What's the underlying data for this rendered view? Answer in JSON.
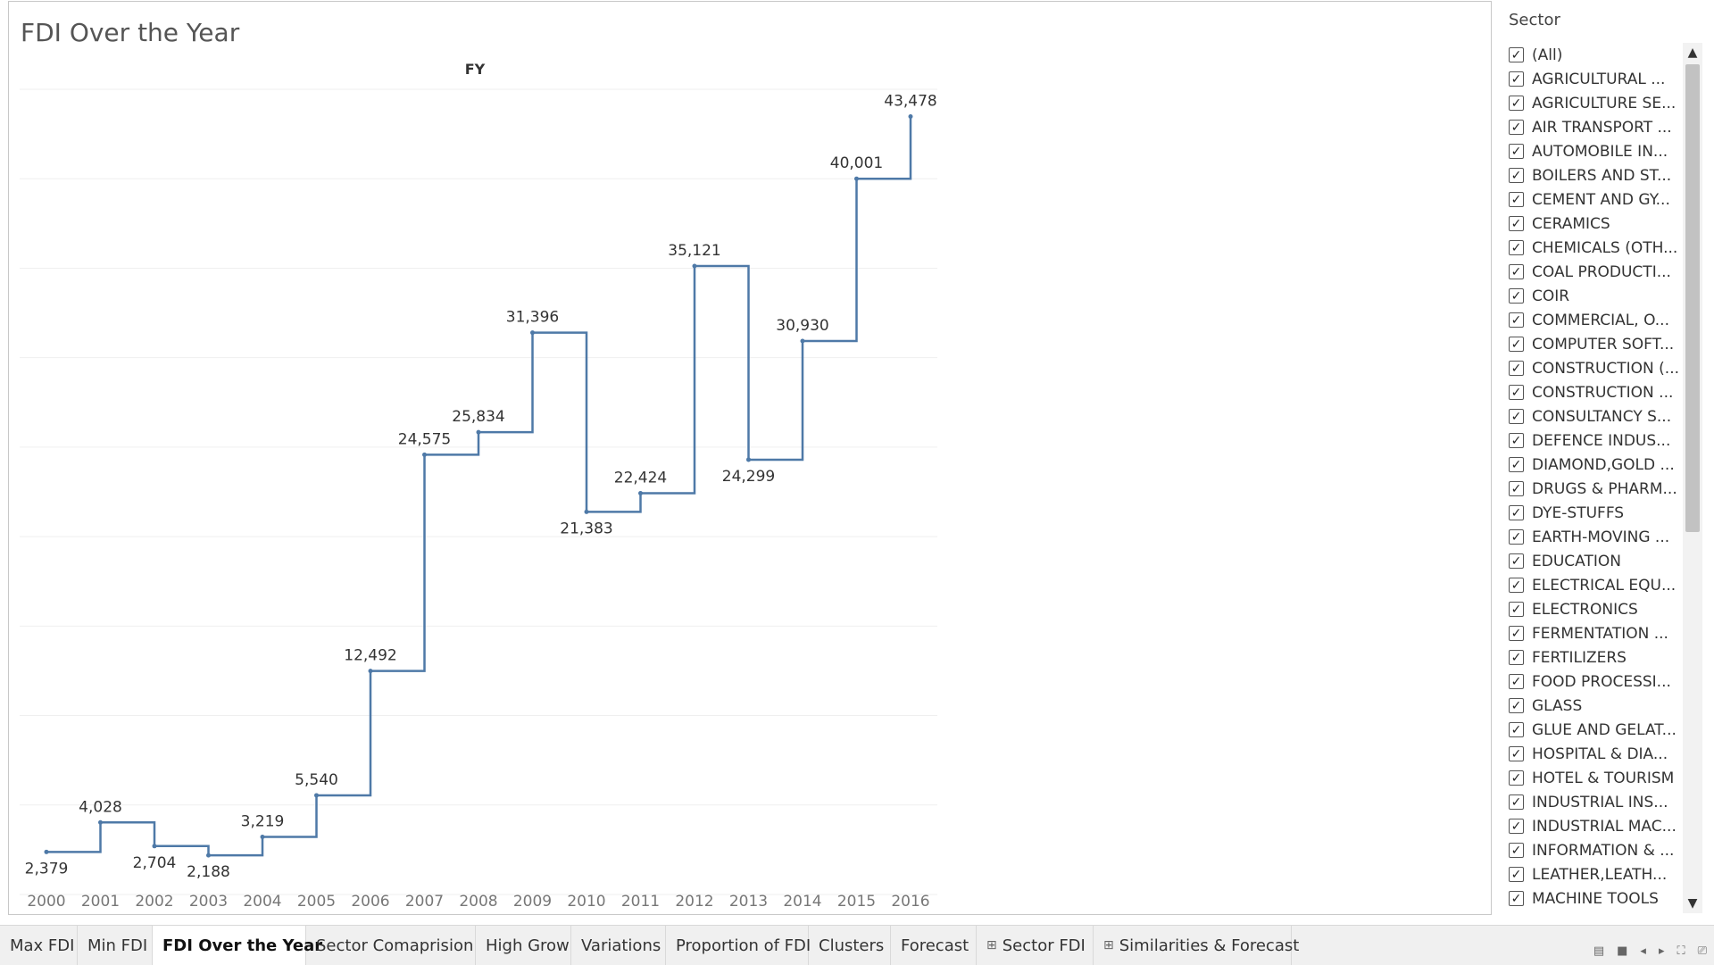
{
  "view": {
    "title": "FDI Over the Year"
  },
  "chart_data": {
    "type": "line",
    "line_style": "step",
    "title": "FDI Over the Year",
    "column_header": "FY",
    "xlabel": "",
    "ylabel": "",
    "x": [
      "2000",
      "2001",
      "2002",
      "2003",
      "2004",
      "2005",
      "2006",
      "2007",
      "2008",
      "2009",
      "2010",
      "2011",
      "2012",
      "2013",
      "2014",
      "2015",
      "2016"
    ],
    "series": [
      {
        "values": [
          2379,
          4028,
          2704,
          2188,
          3219,
          5540,
          12492,
          24575,
          25834,
          31396,
          21383,
          22424,
          35121,
          24299,
          30930,
          40001,
          43478
        ]
      }
    ],
    "data_labels": [
      "2,379",
      "4,028",
      "2,704",
      "2,188",
      "3,219",
      "5,540",
      "12,492",
      "24,575",
      "25,834",
      "31,396",
      "21,383",
      "22,424",
      "35,121",
      "24,299",
      "30,930",
      "40,001",
      "43,478"
    ],
    "ylim": [
      0,
      45000
    ],
    "grid": true,
    "color": "#4e79a7"
  },
  "filter": {
    "title": "Sector",
    "items": [
      "(All)",
      "AGRICULTURAL ...",
      "AGRICULTURE SE...",
      "AIR TRANSPORT ...",
      "AUTOMOBILE IN...",
      "BOILERS AND ST...",
      "CEMENT AND GY...",
      "CERAMICS",
      "CHEMICALS (OTH...",
      "COAL PRODUCTI...",
      "COIR",
      "COMMERCIAL, O...",
      "COMPUTER SOFT...",
      "CONSTRUCTION (...",
      "CONSTRUCTION ...",
      "CONSULTANCY S...",
      "DEFENCE INDUS...",
      "DIAMOND,GOLD ...",
      "DRUGS & PHARM...",
      "DYE-STUFFS",
      "EARTH-MOVING ...",
      "EDUCATION",
      "ELECTRICAL EQU...",
      "ELECTRONICS",
      "FERMENTATION ...",
      "FERTILIZERS",
      "FOOD PROCESSI...",
      "GLASS",
      "GLUE AND GELAT...",
      "HOSPITAL & DIA...",
      "HOTEL & TOURISM",
      "INDUSTRIAL INS...",
      "INDUSTRIAL MAC...",
      "INFORMATION & ...",
      "LEATHER,LEATH...",
      "MACHINE TOOLS"
    ],
    "check_glyph": "✓"
  },
  "scrollbar": {
    "up": "▲",
    "down": "▼"
  },
  "tabs": [
    {
      "label": "Max FDI",
      "icon": "",
      "active": false
    },
    {
      "label": "Min FDI",
      "icon": "",
      "active": false
    },
    {
      "label": "FDI Over the Year",
      "icon": "",
      "active": true
    },
    {
      "label": "Sector Comaprision",
      "icon": "",
      "active": false
    },
    {
      "label": "High Grow",
      "icon": "",
      "active": false
    },
    {
      "label": "Variations",
      "icon": "",
      "active": false
    },
    {
      "label": "Proportion of FDI",
      "icon": "",
      "active": false
    },
    {
      "label": "Clusters",
      "icon": "",
      "active": false
    },
    {
      "label": "Forecast",
      "icon": "",
      "active": false
    },
    {
      "label": "Sector FDI",
      "icon": "⊞",
      "active": false
    },
    {
      "label": "Similarities & Forecast",
      "icon": "⊞",
      "active": false
    }
  ],
  "nav": [
    "▤",
    "■",
    "◂",
    "▸",
    "⛶",
    "⎚"
  ]
}
